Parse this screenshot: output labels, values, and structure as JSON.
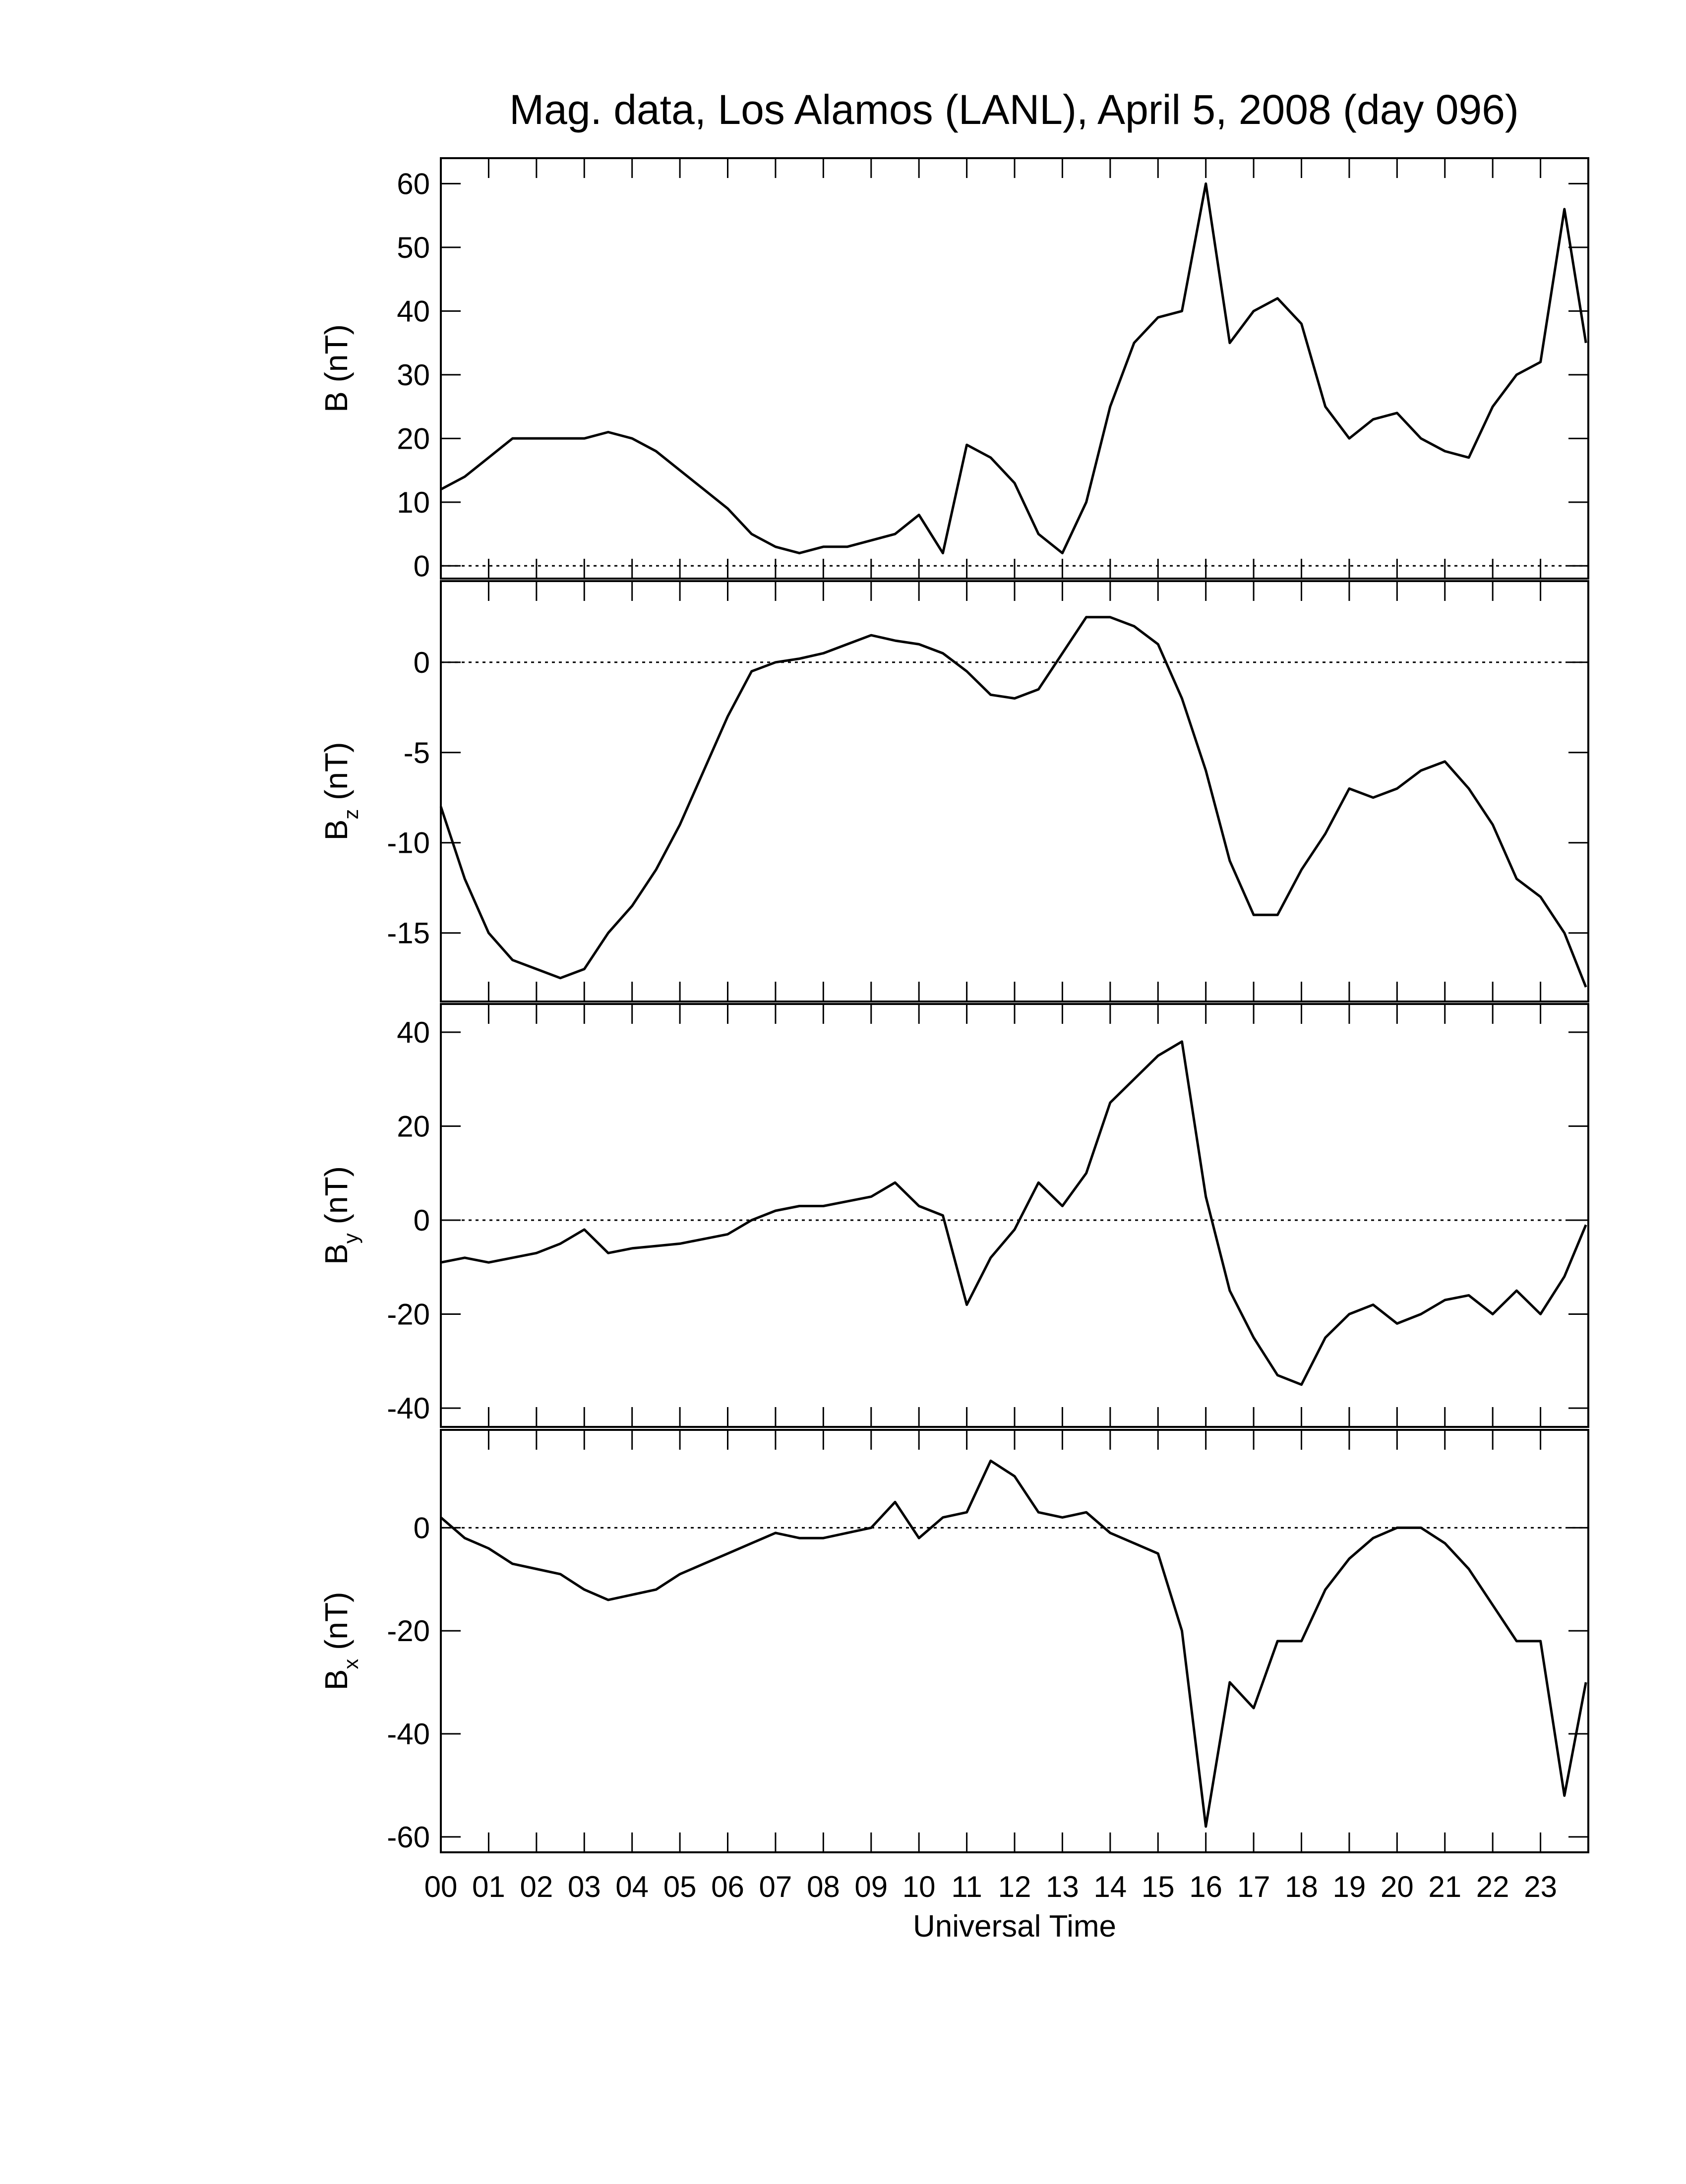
{
  "chart_data": [
    {
      "type": "line",
      "title": "Mag. data, Los Alamos (LANL), April 5, 2008 (day 096)",
      "ylabel": {
        "main": "B",
        "unit": " (nT)"
      },
      "color": "#000000",
      "x": [
        0,
        0.5,
        1,
        1.5,
        2,
        2.5,
        3,
        3.5,
        4,
        4.5,
        5,
        5.5,
        6,
        6.5,
        7,
        7.5,
        8,
        8.5,
        9,
        9.5,
        10,
        10.5,
        11,
        11.5,
        12,
        12.5,
        13,
        13.5,
        14,
        14.5,
        15,
        15.5,
        16,
        16.5,
        17,
        17.5,
        18,
        18.5,
        19,
        19.5,
        20,
        20.5,
        21,
        21.5,
        22,
        22.5,
        23,
        23.5,
        23.95
      ],
      "values": [
        12,
        14,
        17,
        20,
        20,
        20,
        20,
        21,
        20,
        18,
        15,
        12,
        9,
        5,
        3,
        2,
        3,
        3,
        4,
        5,
        8,
        2,
        19,
        17,
        13,
        5,
        2,
        10,
        25,
        35,
        39,
        40,
        60,
        35,
        40,
        42,
        38,
        25,
        20,
        23,
        24,
        20,
        18,
        17,
        25,
        30,
        32,
        56,
        35
      ],
      "xlim": [
        0,
        24
      ],
      "ylim": [
        -2,
        64
      ],
      "yticks": [
        0,
        10,
        20,
        30,
        40,
        50,
        60
      ]
    },
    {
      "type": "line",
      "ylabel": {
        "main": "B",
        "sub": "z",
        "unit": " (nT)"
      },
      "color": "#000000",
      "x": [
        0,
        0.5,
        1,
        1.5,
        2,
        2.5,
        3,
        3.5,
        4,
        4.5,
        5,
        5.5,
        6,
        6.5,
        7,
        7.5,
        8,
        8.5,
        9,
        9.5,
        10,
        10.5,
        11,
        11.5,
        12,
        12.5,
        13,
        13.5,
        14,
        14.5,
        15,
        15.5,
        16,
        16.5,
        17,
        17.5,
        18,
        18.5,
        19,
        19.5,
        20,
        20.5,
        21,
        21.5,
        22,
        22.5,
        23,
        23.5,
        23.95
      ],
      "values": [
        -8,
        -12,
        -15,
        -16.5,
        -17,
        -17.5,
        -17,
        -15,
        -13.5,
        -11.5,
        -9,
        -6,
        -3,
        -0.5,
        0,
        0.2,
        0.5,
        1,
        1.5,
        1.2,
        1,
        0.5,
        -0.5,
        -1.8,
        -2,
        -1.5,
        0.5,
        2.5,
        2.5,
        2,
        1,
        -2,
        -6,
        -11,
        -14,
        -14,
        -11.5,
        -9.5,
        -7,
        -7.5,
        -7,
        -6,
        -5.5,
        -7,
        -9,
        -12,
        -13,
        -15,
        -18
      ],
      "xlim": [
        0,
        24
      ],
      "ylim": [
        -18.8,
        4.5
      ],
      "yticks": [
        -15,
        -10,
        -5,
        0
      ]
    },
    {
      "type": "line",
      "ylabel": {
        "main": "B",
        "sub": "y",
        "unit": " (nT)"
      },
      "color": "#000000",
      "x": [
        0,
        0.5,
        1,
        1.5,
        2,
        2.5,
        3,
        3.5,
        4,
        4.5,
        5,
        5.5,
        6,
        6.5,
        7,
        7.5,
        8,
        8.5,
        9,
        9.5,
        10,
        10.5,
        11,
        11.5,
        12,
        12.5,
        13,
        13.5,
        14,
        14.5,
        15,
        15.5,
        16,
        16.5,
        17,
        17.5,
        18,
        18.5,
        19,
        19.5,
        20,
        20.5,
        21,
        21.5,
        22,
        22.5,
        23,
        23.5,
        23.95
      ],
      "values": [
        -9,
        -8,
        -9,
        -8,
        -7,
        -5,
        -2,
        -7,
        -6,
        -5.5,
        -5,
        -4,
        -3,
        0,
        2,
        3,
        3,
        4,
        5,
        8,
        3,
        1,
        -18,
        -8,
        -2,
        8,
        3,
        10,
        25,
        30,
        35,
        38,
        5,
        -15,
        -25,
        -33,
        -35,
        -25,
        -20,
        -18,
        -22,
        -20,
        -17,
        -16,
        -20,
        -15,
        -20,
        -12,
        -1
      ],
      "xlim": [
        0,
        24
      ],
      "ylim": [
        -44,
        46
      ],
      "yticks": [
        -40,
        -20,
        0,
        20,
        40
      ]
    },
    {
      "type": "line",
      "ylabel": {
        "main": "B",
        "sub": "x",
        "unit": " (nT)"
      },
      "xlabel": "Universal Time",
      "color": "#000000",
      "x": [
        0,
        0.5,
        1,
        1.5,
        2,
        2.5,
        3,
        3.5,
        4,
        4.5,
        5,
        5.5,
        6,
        6.5,
        7,
        7.5,
        8,
        8.5,
        9,
        9.5,
        10,
        10.5,
        11,
        11.5,
        12,
        12.5,
        13,
        13.5,
        14,
        14.5,
        15,
        15.5,
        16,
        16.5,
        17,
        17.5,
        18,
        18.5,
        19,
        19.5,
        20,
        20.5,
        21,
        21.5,
        22,
        22.5,
        23,
        23.5,
        23.95
      ],
      "values": [
        2,
        -2,
        -4,
        -7,
        -8,
        -9,
        -12,
        -14,
        -13,
        -12,
        -9,
        -7,
        -5,
        -3,
        -1,
        -2,
        -2,
        -1,
        0,
        5,
        -2,
        2,
        3,
        13,
        10,
        3,
        2,
        3,
        -1,
        -3,
        -5,
        -20,
        -58,
        -30,
        -35,
        -22,
        -22,
        -12,
        -6,
        -2,
        0,
        0,
        -3,
        -8,
        -15,
        -22,
        -22,
        -52,
        -30
      ],
      "xlim": [
        0,
        24
      ],
      "ylim": [
        -63,
        19
      ],
      "yticks": [
        -60,
        -40,
        -20,
        0
      ],
      "xticks": [
        {
          "value": 0,
          "label": "00"
        },
        {
          "value": 1,
          "label": "01"
        },
        {
          "value": 2,
          "label": "02"
        },
        {
          "value": 3,
          "label": "03"
        },
        {
          "value": 4,
          "label": "04"
        },
        {
          "value": 5,
          "label": "05"
        },
        {
          "value": 6,
          "label": "06"
        },
        {
          "value": 7,
          "label": "07"
        },
        {
          "value": 8,
          "label": "08"
        },
        {
          "value": 9,
          "label": "09"
        },
        {
          "value": 10,
          "label": "10"
        },
        {
          "value": 11,
          "label": "11"
        },
        {
          "value": 12,
          "label": "12"
        },
        {
          "value": 13,
          "label": "13"
        },
        {
          "value": 14,
          "label": "14"
        },
        {
          "value": 15,
          "label": "15"
        },
        {
          "value": 16,
          "label": "16"
        },
        {
          "value": 17,
          "label": "17"
        },
        {
          "value": 18,
          "label": "18"
        },
        {
          "value": 19,
          "label": "19"
        },
        {
          "value": 20,
          "label": "20"
        },
        {
          "value": 21,
          "label": "21"
        },
        {
          "value": 22,
          "label": "22"
        },
        {
          "value": 23,
          "label": "23"
        }
      ]
    }
  ]
}
